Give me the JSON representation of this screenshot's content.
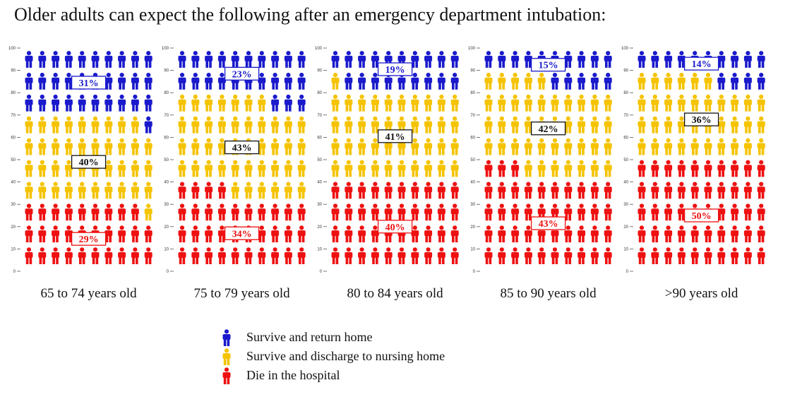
{
  "title": "Older adults can expect the following after an emergency department intubation:",
  "colors": {
    "home": "#1a1acc",
    "nursing": "#f5c300",
    "die": "#ee1111"
  },
  "chart_data": {
    "type": "pictograph",
    "title": "Older adults can expect the following after an emergency department intubation:",
    "y_ticks": [
      "100",
      "90",
      "80",
      "70",
      "60",
      "50",
      "40",
      "30",
      "20",
      "10",
      "0"
    ],
    "ylim": [
      0,
      100
    ],
    "series_names": [
      "Survive and return home",
      "Survive and discharge to nursing home",
      "Die in the hospital"
    ],
    "groups": [
      {
        "label": "65 to 74 years old",
        "home": 31,
        "nursing": 40,
        "die": 29,
        "home_text": "31%",
        "nursing_text": "40%",
        "die_text": "29%"
      },
      {
        "label": "75 to 79 years old",
        "home": 23,
        "nursing": 43,
        "die": 34,
        "home_text": "23%",
        "nursing_text": "43%",
        "die_text": "34%"
      },
      {
        "label": "80 to 84 years old",
        "home": 19,
        "nursing": 41,
        "die": 40,
        "home_text": "19%",
        "nursing_text": "41%",
        "die_text": "40%"
      },
      {
        "label": "85 to 90 years old",
        "home": 15,
        "nursing": 42,
        "die": 43,
        "home_text": "15%",
        "nursing_text": "42%",
        "die_text": "43%"
      },
      {
        "label": ">90 years old",
        "home": 14,
        "nursing": 36,
        "die": 50,
        "home_text": "14%",
        "nursing_text": "36%",
        "die_text": "50%"
      }
    ]
  },
  "legend": [
    {
      "label": "Survive and return home",
      "color_key": "home"
    },
    {
      "label": "Survive and discharge to nursing home",
      "color_key": "nursing"
    },
    {
      "label": "Die in the hospital",
      "color_key": "die"
    }
  ]
}
